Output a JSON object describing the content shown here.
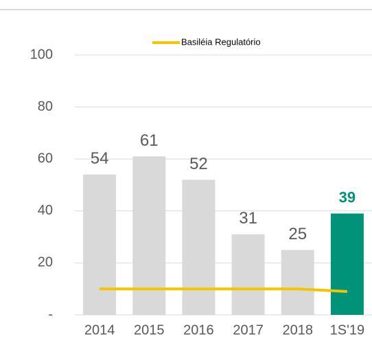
{
  "chart_data": {
    "type": "bar",
    "categories": [
      "2014",
      "2015",
      "2016",
      "2017",
      "2018",
      "1S'19"
    ],
    "series": [
      {
        "name": null,
        "type": "bar",
        "colors": [
          "#d9d9d9",
          "#d9d9d9",
          "#d9d9d9",
          "#d9d9d9",
          "#d9d9d9",
          "#00937a"
        ],
        "label_colors": [
          "#595959",
          "#595959",
          "#595959",
          "#595959",
          "#595959",
          "#00937a"
        ],
        "values": [
          54,
          61,
          52,
          31,
          25,
          39
        ]
      },
      {
        "name": "Basiléia Regulatório",
        "type": "line",
        "color": "#f5c400",
        "values": [
          10,
          10,
          10,
          10,
          10,
          9
        ]
      }
    ],
    "ylim": [
      0,
      100
    ],
    "yticks": [
      {
        "value": 0,
        "label": "-"
      },
      20,
      40,
      60,
      80,
      100
    ],
    "grid": true,
    "legend": "top"
  }
}
